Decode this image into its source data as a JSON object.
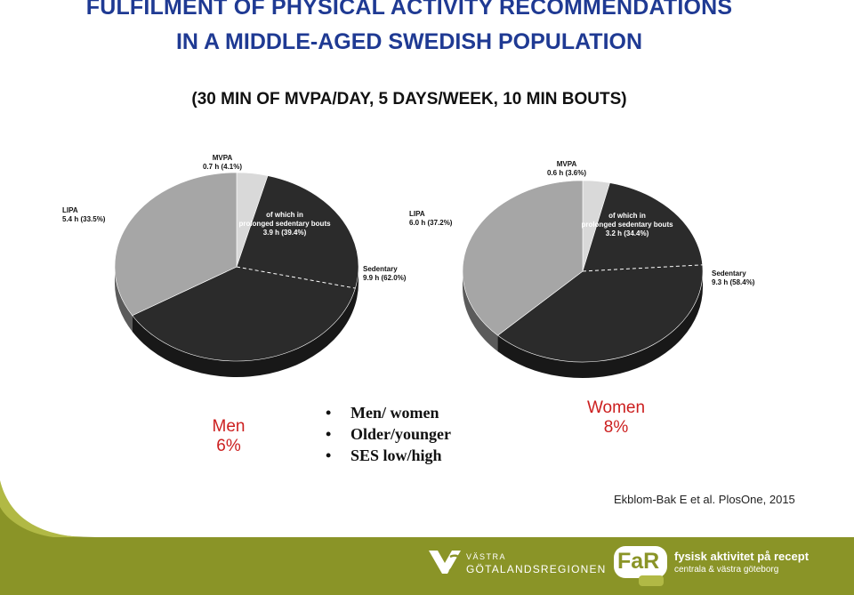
{
  "title_line1": "FULFILMENT OF PHYSICAL ACTIVITY RECOMMENDATIONS",
  "title_line2": "IN A MIDDLE-AGED SWEDISH POPULATION",
  "subtitle": "(30 MIN OF MVPA/DAY, 5 DAYS/WEEK, 10 MIN BOUTS)",
  "chart_data": [
    {
      "type": "pie",
      "group_label": "Men",
      "group_value": "6%",
      "slices": [
        {
          "name": "MVPA",
          "hours": 0.7,
          "percent": 4.1,
          "label_line1": "MVPA",
          "label_line2": "0.7 h (4.1%)",
          "color": "#d9d9d9"
        },
        {
          "name": "Sedentary",
          "hours": 9.9,
          "percent": 62.0,
          "label_line1": "Sedentary",
          "label_line2": "9.9 h (62.0%)",
          "color": "#2b2b2b"
        },
        {
          "name": "LIPA",
          "hours": 5.4,
          "percent": 33.5,
          "label_line1": "LIPA",
          "label_line2": "5.4 h (33.5%)",
          "color": "#a6a6a6"
        }
      ],
      "inner_note": {
        "line1": "of which in",
        "line2": "prolonged sedentary bouts",
        "line3": "3.9 h (39.4%)",
        "percent_of_sedentary": 39.4
      }
    },
    {
      "type": "pie",
      "group_label": "Women",
      "group_value": "8%",
      "slices": [
        {
          "name": "MVPA",
          "hours": 0.6,
          "percent": 3.6,
          "label_line1": "MVPA",
          "label_line2": "0.6 h (3.6%)",
          "color": "#d9d9d9"
        },
        {
          "name": "Sedentary",
          "hours": 9.3,
          "percent": 58.4,
          "label_line1": "Sedentary",
          "label_line2": "9.3 h (58.4%)",
          "color": "#2b2b2b"
        },
        {
          "name": "LIPA",
          "hours": 6.0,
          "percent": 37.2,
          "label_line1": "LIPA",
          "label_line2": "6.0 h (37.2%)",
          "color": "#a6a6a6"
        }
      ],
      "inner_note": {
        "line1": "of which in",
        "line2": "prolonged sedentary bouts",
        "line3": "3.2 h (34.4%)",
        "percent_of_sedentary": 34.4
      }
    }
  ],
  "bullets": [
    "Men/ women",
    "Older/younger",
    "SES low/high"
  ],
  "bullet_glyph": "•",
  "citation": "Ekblom-Bak E et al. PlosOne, 2015",
  "footer": {
    "logo1_line1": "VÄSTRA",
    "logo1_line2": "GÖTALANDSREGIONEN",
    "logo2_badge": "FaR",
    "logo2_title": "fysisk aktivitet på recept",
    "logo2_sub": "centrala & västra göteborg",
    "colors": {
      "olive": "#8a9427",
      "olive_light": "#b1b945",
      "title": "#1f3a93",
      "group": "#cc1f1f"
    }
  }
}
